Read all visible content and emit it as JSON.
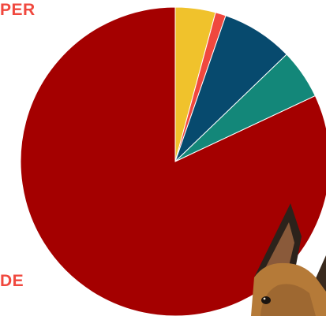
{
  "colors": {
    "label": "#f0483e",
    "background": "#ffffff",
    "dog_fur": "#b57a38",
    "dog_dark": "#2c221b"
  },
  "labels": {
    "top_fragment": "PER",
    "bottom_fragment": "DE"
  },
  "decoration": {
    "overlay_photo": "dog-photo"
  },
  "chart_data": {
    "type": "pie",
    "title": "",
    "start_angle_deg": 0,
    "direction": "clockwise",
    "legend": "none",
    "slices": [
      {
        "value": 4.2,
        "color": "#f0c22c"
      },
      {
        "value": 1.1,
        "color": "#f0483e"
      },
      {
        "value": 7.5,
        "color": "#074a6e"
      },
      {
        "value": 5.2,
        "color": "#138779"
      },
      {
        "value": 82.0,
        "color": "#a40000"
      }
    ]
  }
}
